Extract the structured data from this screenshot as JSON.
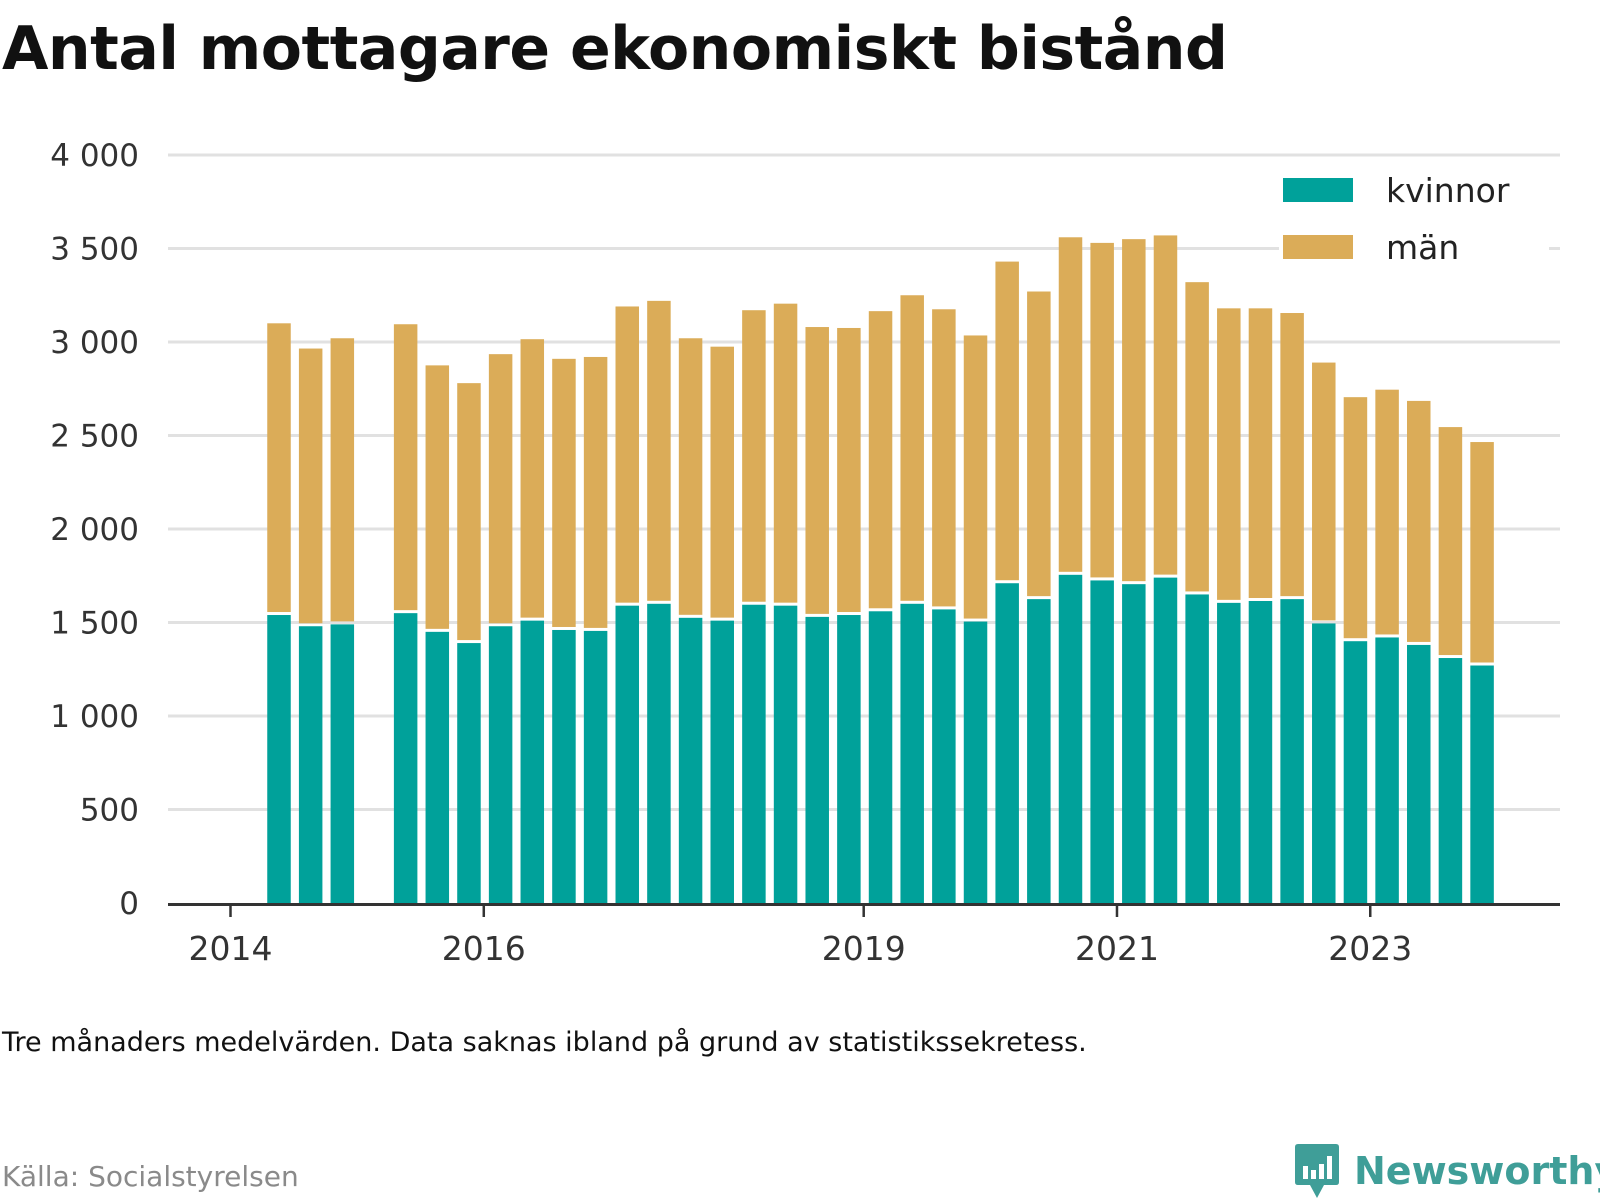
{
  "title": "Antal mottagare ekonomiskt bistånd",
  "note": "Tre månaders medelvärden. Data saknas ibland på grund av statistikssekretess.",
  "source": "Källa: Socialstyrelsen",
  "brand": "Newsworthy",
  "chart_data": {
    "type": "bar",
    "stacked": true,
    "ylim": [
      0,
      4000
    ],
    "yticks": [
      0,
      500,
      1000,
      1500,
      2000,
      2500,
      3000,
      3500,
      4000
    ],
    "ytick_labels": [
      "0",
      "500",
      "1 000",
      "1 500",
      "2 000",
      "2 500",
      "3 000",
      "3 500",
      "4 000"
    ],
    "xticks": [
      {
        "label": "2014",
        "q": 0
      },
      {
        "label": "2016",
        "q": 8
      },
      {
        "label": "2019",
        "q": 20
      },
      {
        "label": "2021",
        "q": 28
      },
      {
        "label": "2023",
        "q": 36
      }
    ],
    "quarters": [
      "2014Q2",
      "2014Q3",
      "2014Q4",
      "2015Q1",
      "2015Q2",
      "2015Q3",
      "2015Q4",
      "2016Q1",
      "2016Q2",
      "2016Q3",
      "2016Q4",
      "2017Q1",
      "2017Q2",
      "2017Q3",
      "2017Q4",
      "2018Q1",
      "2018Q2",
      "2018Q3",
      "2018Q4",
      "2019Q1",
      "2019Q2",
      "2019Q3",
      "2019Q4",
      "2020Q1",
      "2020Q2",
      "2020Q3",
      "2020Q4",
      "2021Q1",
      "2021Q2",
      "2021Q3",
      "2021Q4",
      "2022Q1",
      "2022Q2",
      "2022Q3",
      "2022Q4",
      "2023Q1",
      "2023Q2",
      "2023Q3",
      "2023Q4",
      "2024Q1",
      "2024Q2"
    ],
    "legend": {
      "position": "top-right",
      "items": [
        "kvinnor",
        "män"
      ]
    },
    "series": [
      {
        "name": "kvinnor",
        "color": "#00a19a",
        "values": [
          1540,
          1480,
          1490,
          null,
          1550,
          1450,
          1390,
          1480,
          1510,
          1460,
          1455,
          1590,
          1600,
          1525,
          1510,
          1595,
          1590,
          1530,
          1540,
          1560,
          1600,
          1570,
          1505,
          1710,
          1625,
          1755,
          1725,
          1705,
          1740,
          1650,
          1605,
          1615,
          1625,
          1495,
          1400,
          1420,
          1380,
          1310,
          1270,
          null,
          null
        ]
      },
      {
        "name": "män",
        "color": "#dbac58",
        "values": [
          1560,
          1485,
          1530,
          null,
          1545,
          1425,
          1390,
          1455,
          1505,
          1450,
          1465,
          1600,
          1620,
          1495,
          1465,
          1575,
          1615,
          1550,
          1535,
          1605,
          1650,
          1605,
          1530,
          1720,
          1645,
          1805,
          1805,
          1845,
          1830,
          1670,
          1575,
          1565,
          1530,
          1395,
          1305,
          1325,
          1305,
          1235,
          1195,
          null,
          null
        ]
      }
    ]
  }
}
